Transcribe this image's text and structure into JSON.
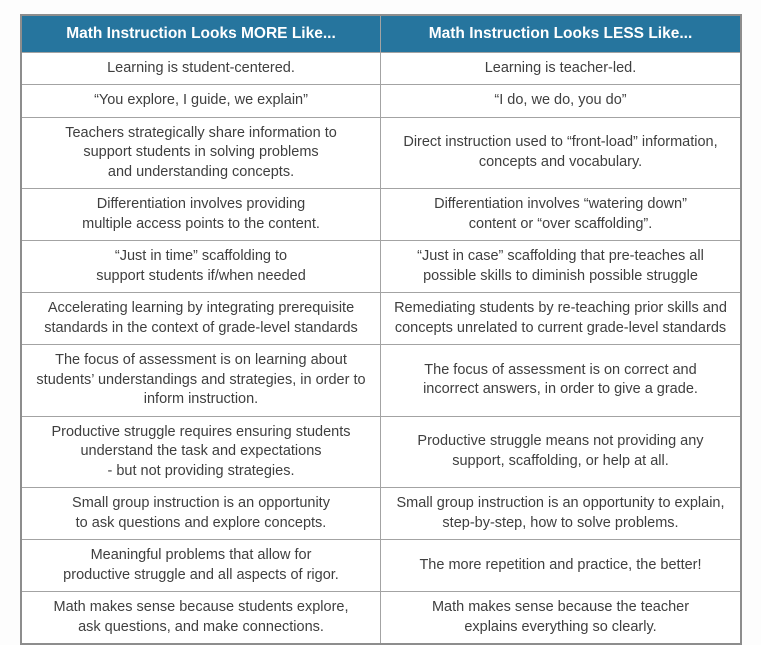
{
  "theme": {
    "header_bg": "#26759E",
    "header_text": "#FFFFFF",
    "outer_border": "#8D8D8D",
    "inner_border": "#A3A3A3",
    "cell_bg": "#FFFFFF",
    "cell_text": "#3F3F3F"
  },
  "table": {
    "header": {
      "more": "Math Instruction Looks MORE Like...",
      "less": "Math Instruction Looks LESS Like..."
    },
    "rows": [
      {
        "more": "Learning is student-centered.",
        "less": "Learning is teacher-led."
      },
      {
        "more": "“You explore, I guide, we explain”",
        "less": "“I do, we do, you do”"
      },
      {
        "more": "Teachers strategically share information to\nsupport students in solving problems\nand understanding concepts.",
        "less": "Direct instruction used to “front-load” information,\nconcepts and vocabulary."
      },
      {
        "more": "Differentiation involves providing\nmultiple access points to the content.",
        "less": "Differentiation involves “watering down”\ncontent or “over scaffolding”."
      },
      {
        "more": "“Just in time” scaffolding to\nsupport students if/when needed",
        "less": "“Just in case” scaffolding that pre-teaches all\npossible skills to diminish possible struggle"
      },
      {
        "more": "Accelerating learning by integrating prerequisite\nstandards in the context of grade-level standards",
        "less": "Remediating students by re-teaching prior skills and\nconcepts unrelated to current grade-level standards"
      },
      {
        "more": "The focus of assessment is on learning about\nstudents’ understandings and strategies, in order to\ninform instruction.",
        "less": "The focus of assessment is on correct and\nincorrect answers, in order to give a grade."
      },
      {
        "more": "Productive struggle requires ensuring students\nunderstand the task and expectations\n- but not providing strategies.",
        "less": "Productive struggle means not providing any\nsupport, scaffolding, or help at all."
      },
      {
        "more": "Small group instruction is an opportunity\nto ask questions and explore concepts.",
        "less": "Small group instruction is an opportunity to explain,\nstep-by-step, how to solve problems."
      },
      {
        "more": "Meaningful problems that allow for\nproductive struggle and all aspects of rigor.",
        "less": "The more repetition and practice, the better!"
      },
      {
        "more": "Math makes sense because students explore,\nask questions, and make connections.",
        "less": "Math makes sense because the teacher\nexplains everything so clearly."
      }
    ]
  }
}
